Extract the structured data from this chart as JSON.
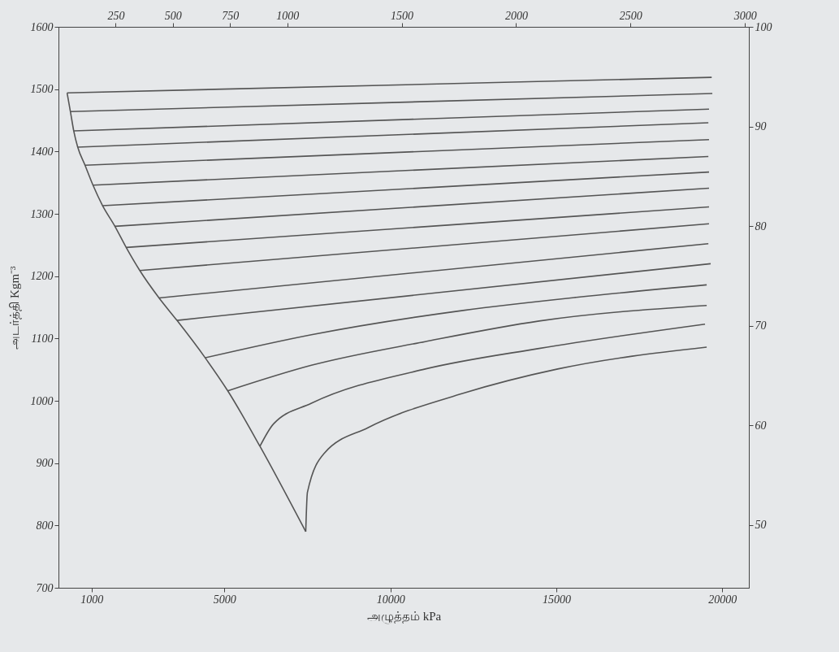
{
  "chart_data": {
    "type": "line",
    "xlabel": "அழுத்தம்  kPa",
    "ylabel": "அடர்த்தி  Kgm⁻³",
    "xlim": [
      0,
      20800
    ],
    "xticks": [
      1000,
      5000,
      10000,
      15000,
      20000
    ],
    "x2lim": [
      0,
      3017
    ],
    "x2ticks": [
      250,
      500,
      750,
      1000,
      1500,
      2000,
      2500,
      3000
    ],
    "ylim": [
      700,
      1600
    ],
    "yticks": [
      700,
      800,
      900,
      1000,
      1100,
      1200,
      1300,
      1400,
      1500,
      1600
    ],
    "y2lim": [
      43.7,
      100
    ],
    "y2ticks": [
      50,
      60,
      70,
      80,
      90,
      100
    ],
    "series": [
      {
        "color": "#555555",
        "x": [
          260,
          360,
          460,
          580,
          800,
          1040,
          1330,
          1700,
          2040,
          2450,
          3030,
          3570,
          4420,
          5100,
          6070,
          7450
        ],
        "values": [
          1494,
          1464,
          1433,
          1407,
          1378,
          1346,
          1313,
          1280,
          1246,
          1209,
          1165,
          1129,
          1069,
          1016,
          927,
          790
        ]
      },
      {
        "color": "#555555",
        "x": [
          260,
          19680
        ],
        "values": [
          1494,
          1519
        ]
      },
      {
        "color": "#555555",
        "x": [
          360,
          19700
        ],
        "values": [
          1464,
          1493
        ]
      },
      {
        "color": "#555555",
        "x": [
          460,
          19600
        ],
        "values": [
          1433,
          1468
        ]
      },
      {
        "color": "#555555",
        "x": [
          580,
          19580
        ],
        "values": [
          1407,
          1446
        ]
      },
      {
        "color": "#555555",
        "x": [
          800,
          19600
        ],
        "values": [
          1378,
          1419
        ]
      },
      {
        "color": "#555555",
        "x": [
          1040,
          19580
        ],
        "values": [
          1346,
          1392
        ]
      },
      {
        "color": "#555555",
        "x": [
          1330,
          19600
        ],
        "values": [
          1313,
          1367
        ]
      },
      {
        "color": "#555555",
        "x": [
          1700,
          19600
        ],
        "values": [
          1280,
          1341
        ]
      },
      {
        "color": "#555555",
        "x": [
          2040,
          19600
        ],
        "values": [
          1246,
          1311
        ]
      },
      {
        "color": "#555555",
        "x": [
          2450,
          19600
        ],
        "values": [
          1209,
          1284
        ]
      },
      {
        "color": "#555555",
        "x": [
          3030,
          19580
        ],
        "values": [
          1165,
          1252
        ]
      },
      {
        "color": "#555555",
        "x": [
          3570,
          19650
        ],
        "values": [
          1129,
          1220
        ]
      },
      {
        "color": "#555555",
        "x": [
          4420,
          7620,
          12190,
          15600,
          19530
        ],
        "values": [
          1069,
          1106,
          1145,
          1166,
          1186
        ]
      },
      {
        "color": "#555555",
        "x": [
          5100,
          7620,
          11050,
          14480,
          19530
        ],
        "values": [
          1016,
          1057,
          1095,
          1128,
          1153
        ]
      },
      {
        "color": "#555555",
        "x": [
          6070,
          6480,
          7620,
          11050,
          14480,
          19480
        ],
        "values": [
          927,
          963,
          996,
          1051,
          1084,
          1123
        ]
      },
      {
        "color": "#555555",
        "x": [
          7450,
          7500,
          8010,
          9330,
          12190,
          15040,
          19530
        ],
        "values": [
          790,
          853,
          916,
          957,
          1012,
          1051,
          1086
        ]
      }
    ]
  }
}
